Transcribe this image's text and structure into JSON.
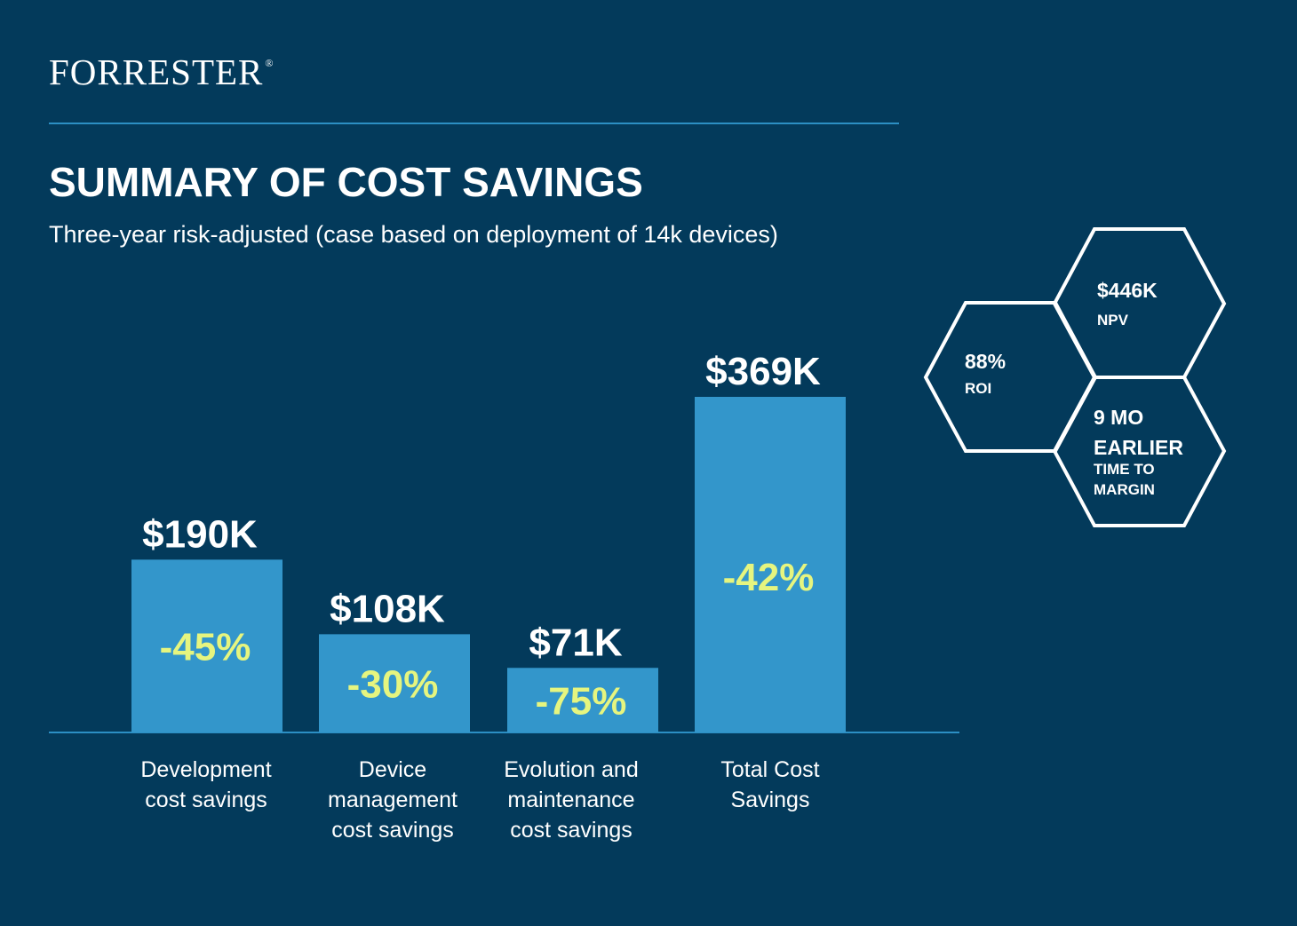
{
  "brand": {
    "name": "FORRESTER",
    "registered_mark": "®"
  },
  "header": {
    "title": "SUMMARY OF COST SAVINGS",
    "subtitle": "Three-year risk-adjusted (case based on deployment of 14k devices)"
  },
  "colors": {
    "background": "#033a5b",
    "bar": "#3396cb",
    "percent": "#e6f57f",
    "text": "#ffffff",
    "rule": "#2c8fc4"
  },
  "chart_data": {
    "type": "bar",
    "title": "SUMMARY OF COST SAVINGS",
    "subtitle": "Three-year risk-adjusted (case based on deployment of 14k devices)",
    "unit": "$K",
    "ylim": [
      0,
      369
    ],
    "grid": false,
    "legend": "none",
    "categories": [
      [
        "Development",
        "cost savings"
      ],
      [
        "Device",
        "management",
        "cost savings"
      ],
      [
        "Evolution and",
        "maintenance",
        "cost savings"
      ],
      [
        "Total Cost",
        "Savings"
      ]
    ],
    "values": [
      190,
      108,
      71,
      369
    ],
    "value_labels": [
      "$190K",
      "$108K",
      "$71K",
      "$369K"
    ],
    "percent_labels": [
      "-45%",
      "-30%",
      "-75%",
      "-42%"
    ]
  },
  "metrics": {
    "npv": {
      "value": "$446K",
      "label": "NPV"
    },
    "roi": {
      "value": "88%",
      "label": "ROI"
    },
    "time_to_margin": {
      "value_line1": "9 MO",
      "value_line2": "EARLIER",
      "label_line1": "TIME TO",
      "label_line2": "MARGIN"
    }
  }
}
